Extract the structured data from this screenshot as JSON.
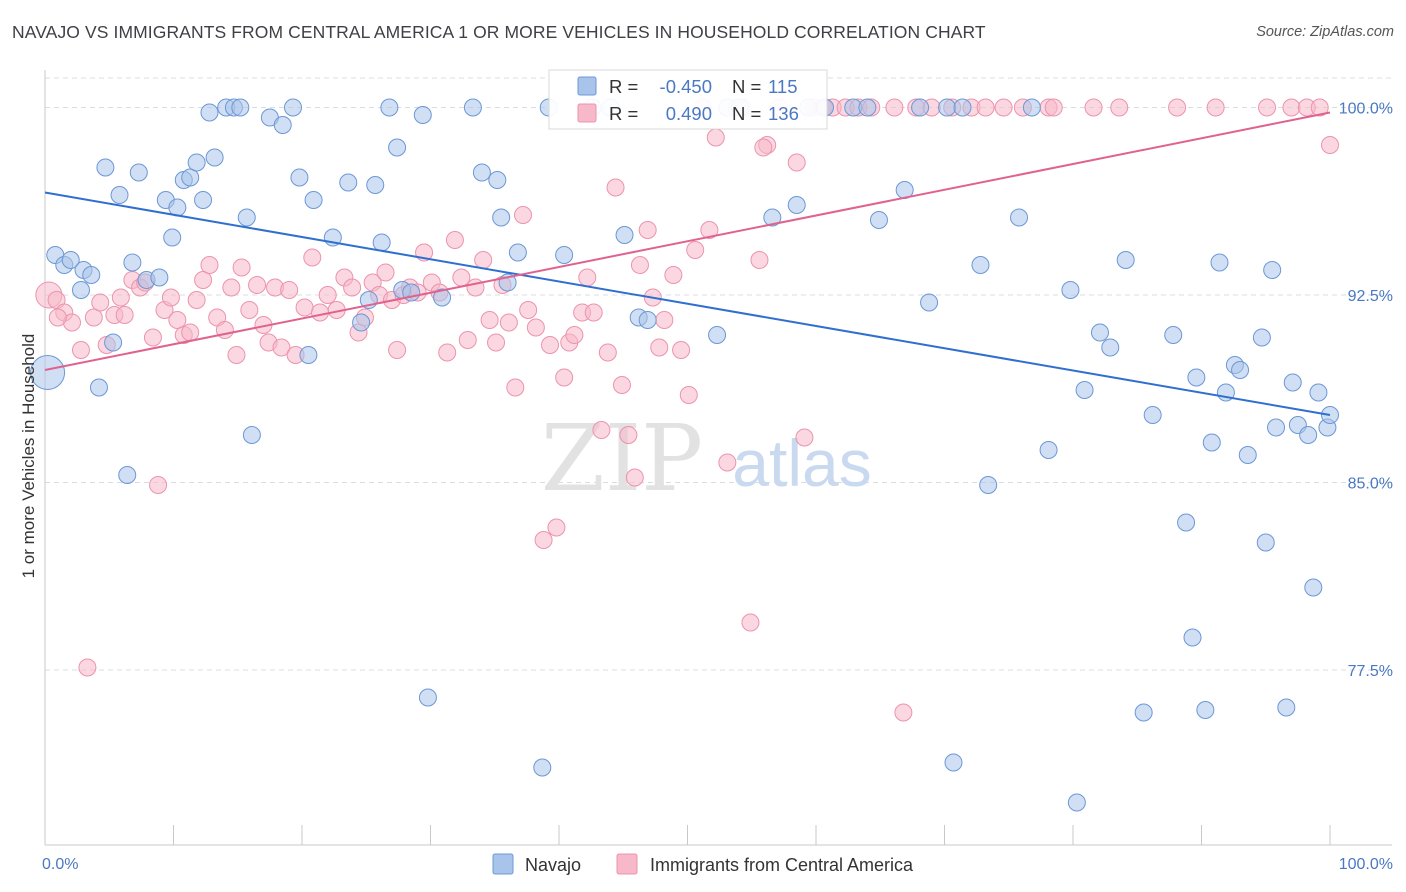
{
  "title": "NAVAJO VS IMMIGRANTS FROM CENTRAL AMERICA 1 OR MORE VEHICLES IN HOUSEHOLD CORRELATION CHART",
  "source": "Source: ZipAtlas.com",
  "watermark": {
    "zip": "ZIP",
    "atlas": "atlas"
  },
  "stats_legend": {
    "r_label": "R =",
    "n_label": "N =",
    "rows": [
      {
        "series": "Navajo",
        "r": "-0.450",
        "n": "115",
        "color": "#4a78c2"
      },
      {
        "series": "Immigrants from Central America",
        "r": "0.490",
        "n": "136",
        "color": "#e06a94"
      }
    ]
  },
  "colors": {
    "navajo_fill": "#a9c4ea",
    "navajo_stroke": "#6c98d6",
    "navajo_line": "#2f6fcf",
    "immig_fill": "#f7b8c9",
    "immig_stroke": "#ec93ad",
    "immig_line": "#e0628e",
    "axis_text": "#4a78c2",
    "grid": "#d9dde3"
  },
  "chart_data": {
    "type": "scatter",
    "title": "NAVAJO VS IMMIGRANTS FROM CENTRAL AMERICA 1 OR MORE VEHICLES IN HOUSEHOLD CORRELATION CHART",
    "xlabel": "",
    "ylabel": "1 or more Vehicles in Household",
    "xlim": [
      0,
      100
    ],
    "ylim": [
      70.5,
      101.5
    ],
    "x_tick_labels": [
      "0.0%",
      "100.0%"
    ],
    "y_ticks": [
      77.5,
      85.0,
      92.5,
      100.0
    ],
    "y_tick_labels": [
      "77.5%",
      "85.0%",
      "92.5%",
      "100.0%"
    ],
    "grid": "horizontal-dashed",
    "legend_position": "bottom",
    "series": [
      {
        "name": "Navajo",
        "trend": [
          [
            0,
            96.6
          ],
          [
            100,
            87.7
          ]
        ],
        "points": [
          [
            0.2,
            89.4
          ],
          [
            0.8,
            94.1
          ],
          [
            1.5,
            93.7
          ],
          [
            2.0,
            93.9
          ],
          [
            2.8,
            92.7
          ],
          [
            3.0,
            93.5
          ],
          [
            3.6,
            93.3
          ],
          [
            4.2,
            88.8
          ],
          [
            4.7,
            97.6
          ],
          [
            5.3,
            90.6
          ],
          [
            5.8,
            96.5
          ],
          [
            6.4,
            85.3
          ],
          [
            6.8,
            93.8
          ],
          [
            7.3,
            97.4
          ],
          [
            7.9,
            93.1
          ],
          [
            8.9,
            93.2
          ],
          [
            9.4,
            96.3
          ],
          [
            9.9,
            94.8
          ],
          [
            10.3,
            96.0
          ],
          [
            10.8,
            97.1
          ],
          [
            11.3,
            97.2
          ],
          [
            11.8,
            97.8
          ],
          [
            12.3,
            96.3
          ],
          [
            12.8,
            99.8
          ],
          [
            13.2,
            98.0
          ],
          [
            14.1,
            100.0
          ],
          [
            14.7,
            100.0
          ],
          [
            15.2,
            100.0
          ],
          [
            15.7,
            95.6
          ],
          [
            16.1,
            86.9
          ],
          [
            17.5,
            99.6
          ],
          [
            18.5,
            99.3
          ],
          [
            19.3,
            100.0
          ],
          [
            19.8,
            97.2
          ],
          [
            20.5,
            90.1
          ],
          [
            20.9,
            96.3
          ],
          [
            22.4,
            94.8
          ],
          [
            23.6,
            97.0
          ],
          [
            24.6,
            91.4
          ],
          [
            25.2,
            92.3
          ],
          [
            25.7,
            96.9
          ],
          [
            26.2,
            94.6
          ],
          [
            26.8,
            100.0
          ],
          [
            27.4,
            98.4
          ],
          [
            27.8,
            92.7
          ],
          [
            28.5,
            92.6
          ],
          [
            29.4,
            99.7
          ],
          [
            29.8,
            76.4
          ],
          [
            30.9,
            92.4
          ],
          [
            33.3,
            100.0
          ],
          [
            34.0,
            97.4
          ],
          [
            35.2,
            97.1
          ],
          [
            35.5,
            95.6
          ],
          [
            36.0,
            93.0
          ],
          [
            36.8,
            94.2
          ],
          [
            38.7,
            73.6
          ],
          [
            39.2,
            100.0
          ],
          [
            40.4,
            94.1
          ],
          [
            42.6,
            100.0
          ],
          [
            44.0,
            100.0
          ],
          [
            45.1,
            94.9
          ],
          [
            46.2,
            91.6
          ],
          [
            46.9,
            91.5
          ],
          [
            52.3,
            90.9
          ],
          [
            53.1,
            100.0
          ],
          [
            54.1,
            100.0
          ],
          [
            56.6,
            95.6
          ],
          [
            58.5,
            96.1
          ],
          [
            59.4,
            100.0
          ],
          [
            60.7,
            100.0
          ],
          [
            62.9,
            100.0
          ],
          [
            64.0,
            100.0
          ],
          [
            64.9,
            95.5
          ],
          [
            66.9,
            96.7
          ],
          [
            68.1,
            100.0
          ],
          [
            68.8,
            92.2
          ],
          [
            70.2,
            100.0
          ],
          [
            70.7,
            73.8
          ],
          [
            71.4,
            100.0
          ],
          [
            72.8,
            93.7
          ],
          [
            73.4,
            84.9
          ],
          [
            75.8,
            95.6
          ],
          [
            76.8,
            100.0
          ],
          [
            78.1,
            86.3
          ],
          [
            79.8,
            92.7
          ],
          [
            80.3,
            72.2
          ],
          [
            80.9,
            88.7
          ],
          [
            82.1,
            91.0
          ],
          [
            82.9,
            90.4
          ],
          [
            84.1,
            93.9
          ],
          [
            85.5,
            75.8
          ],
          [
            86.2,
            87.7
          ],
          [
            87.8,
            90.9
          ],
          [
            88.8,
            83.4
          ],
          [
            89.3,
            78.8
          ],
          [
            89.6,
            89.2
          ],
          [
            90.3,
            75.9
          ],
          [
            90.8,
            86.6
          ],
          [
            91.4,
            93.8
          ],
          [
            91.9,
            88.6
          ],
          [
            92.6,
            89.7
          ],
          [
            93.0,
            89.5
          ],
          [
            93.6,
            86.1
          ],
          [
            94.7,
            90.8
          ],
          [
            95.0,
            82.6
          ],
          [
            95.5,
            93.5
          ],
          [
            95.8,
            87.2
          ],
          [
            96.6,
            76.0
          ],
          [
            97.1,
            89.0
          ],
          [
            97.5,
            87.3
          ],
          [
            98.3,
            86.9
          ],
          [
            98.7,
            80.8
          ],
          [
            99.1,
            88.6
          ],
          [
            99.8,
            87.2
          ],
          [
            100.0,
            87.7
          ]
        ]
      },
      {
        "name": "Immigrants from Central America",
        "trend": [
          [
            0,
            89.5
          ],
          [
            100,
            99.8
          ]
        ],
        "points": [
          [
            0.3,
            92.5
          ],
          [
            0.9,
            92.3
          ],
          [
            1.5,
            91.8
          ],
          [
            2.1,
            91.4
          ],
          [
            2.8,
            90.3
          ],
          [
            3.3,
            77.6
          ],
          [
            3.8,
            91.6
          ],
          [
            4.3,
            92.2
          ],
          [
            4.8,
            90.5
          ],
          [
            5.4,
            91.7
          ],
          [
            5.9,
            92.4
          ],
          [
            6.2,
            91.7
          ],
          [
            6.8,
            93.1
          ],
          [
            7.4,
            92.8
          ],
          [
            7.8,
            93.0
          ],
          [
            8.4,
            90.8
          ],
          [
            8.8,
            84.9
          ],
          [
            9.3,
            91.9
          ],
          [
            9.8,
            92.4
          ],
          [
            10.3,
            91.5
          ],
          [
            10.8,
            90.9
          ],
          [
            11.3,
            91.0
          ],
          [
            11.8,
            92.3
          ],
          [
            12.3,
            93.1
          ],
          [
            12.8,
            93.7
          ],
          [
            13.4,
            91.6
          ],
          [
            14.0,
            91.1
          ],
          [
            14.5,
            92.8
          ],
          [
            14.9,
            90.1
          ],
          [
            15.3,
            93.6
          ],
          [
            15.9,
            91.9
          ],
          [
            16.5,
            92.9
          ],
          [
            17.0,
            91.3
          ],
          [
            17.4,
            90.6
          ],
          [
            17.9,
            92.8
          ],
          [
            18.4,
            90.4
          ],
          [
            19.0,
            92.7
          ],
          [
            19.5,
            90.1
          ],
          [
            20.2,
            92.0
          ],
          [
            20.8,
            94.0
          ],
          [
            21.4,
            91.8
          ],
          [
            22.0,
            92.5
          ],
          [
            22.7,
            91.9
          ],
          [
            23.3,
            93.2
          ],
          [
            23.9,
            92.8
          ],
          [
            24.4,
            91.0
          ],
          [
            24.9,
            91.6
          ],
          [
            25.5,
            93.0
          ],
          [
            26.0,
            92.5
          ],
          [
            26.5,
            93.4
          ],
          [
            27.0,
            92.3
          ],
          [
            27.4,
            90.3
          ],
          [
            27.9,
            92.5
          ],
          [
            28.4,
            92.8
          ],
          [
            29.0,
            92.6
          ],
          [
            29.5,
            94.2
          ],
          [
            30.1,
            93.0
          ],
          [
            30.7,
            92.6
          ],
          [
            31.3,
            90.2
          ],
          [
            31.9,
            94.7
          ],
          [
            32.4,
            93.2
          ],
          [
            32.9,
            90.7
          ],
          [
            33.5,
            92.8
          ],
          [
            34.1,
            93.9
          ],
          [
            34.6,
            91.5
          ],
          [
            35.1,
            90.6
          ],
          [
            35.6,
            92.9
          ],
          [
            36.1,
            91.4
          ],
          [
            36.6,
            88.8
          ],
          [
            37.2,
            95.7
          ],
          [
            37.6,
            91.9
          ],
          [
            38.2,
            91.2
          ],
          [
            38.8,
            82.7
          ],
          [
            39.3,
            90.5
          ],
          [
            39.8,
            83.2
          ],
          [
            40.4,
            89.2
          ],
          [
            40.8,
            90.6
          ],
          [
            41.2,
            90.9
          ],
          [
            41.8,
            91.8
          ],
          [
            42.2,
            93.2
          ],
          [
            42.7,
            91.8
          ],
          [
            43.3,
            87.1
          ],
          [
            43.8,
            90.2
          ],
          [
            44.4,
            96.8
          ],
          [
            44.9,
            88.9
          ],
          [
            45.4,
            86.9
          ],
          [
            45.9,
            85.2
          ],
          [
            46.3,
            93.7
          ],
          [
            46.9,
            95.1
          ],
          [
            47.3,
            92.4
          ],
          [
            47.8,
            90.4
          ],
          [
            48.2,
            91.5
          ],
          [
            48.9,
            93.3
          ],
          [
            49.5,
            90.3
          ],
          [
            50.1,
            88.5
          ],
          [
            50.6,
            94.3
          ],
          [
            51.2,
            100.0
          ],
          [
            51.7,
            95.1
          ],
          [
            52.2,
            98.8
          ],
          [
            53.1,
            85.8
          ],
          [
            53.8,
            100.0
          ],
          [
            54.3,
            100.0
          ],
          [
            54.9,
            79.4
          ],
          [
            55.6,
            93.9
          ],
          [
            56.2,
            98.5
          ],
          [
            57.1,
            100.0
          ],
          [
            58.5,
            97.8
          ],
          [
            59.1,
            86.8
          ],
          [
            59.8,
            100.0
          ],
          [
            60.6,
            100.0
          ],
          [
            61.3,
            100.0
          ],
          [
            62.3,
            100.0
          ],
          [
            63.3,
            100.0
          ],
          [
            64.3,
            100.0
          ],
          [
            66.1,
            100.0
          ],
          [
            66.8,
            75.8
          ],
          [
            67.8,
            100.0
          ],
          [
            69.0,
            100.0
          ],
          [
            70.6,
            100.0
          ],
          [
            72.1,
            100.0
          ],
          [
            73.2,
            100.0
          ],
          [
            74.6,
            100.0
          ],
          [
            76.1,
            100.0
          ],
          [
            78.1,
            100.0
          ],
          [
            78.5,
            100.0
          ],
          [
            81.6,
            100.0
          ],
          [
            83.6,
            100.0
          ],
          [
            88.1,
            100.0
          ],
          [
            91.1,
            100.0
          ],
          [
            95.1,
            100.0
          ],
          [
            97.0,
            100.0
          ],
          [
            98.2,
            100.0
          ],
          [
            99.2,
            100.0
          ],
          [
            100.0,
            98.5
          ],
          [
            1.0,
            91.6
          ],
          [
            55.9,
            98.4
          ]
        ]
      }
    ]
  }
}
